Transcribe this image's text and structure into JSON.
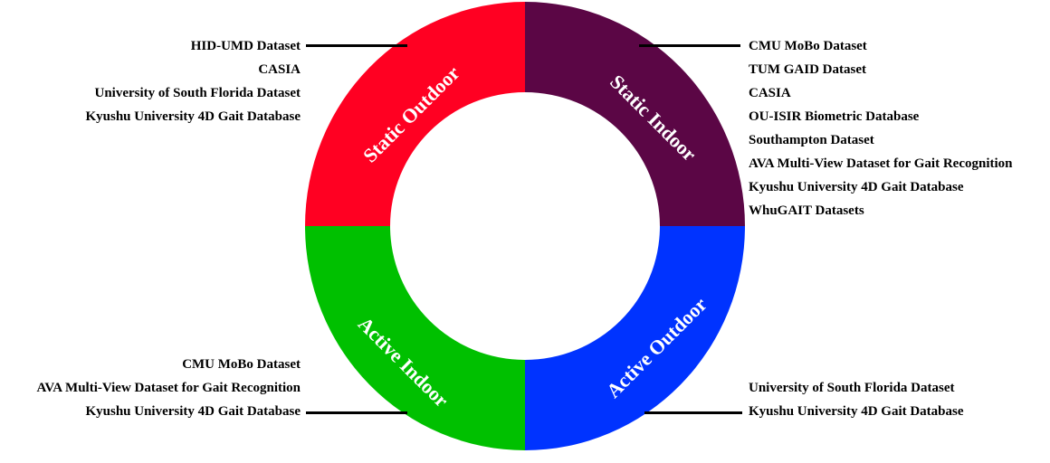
{
  "segments": {
    "static_outdoor": {
      "label": "Static Outdoor",
      "color": "#FF0022"
    },
    "static_indoor": {
      "label": "Static Indoor",
      "color": "#5B0645"
    },
    "active_indoor": {
      "label": "Active Indoor",
      "color": "#00C000"
    },
    "active_outdoor": {
      "label": "Active Outdoor",
      "color": "#0033FF"
    }
  },
  "lists": {
    "static_outdoor": [
      "HID-UMD Dataset",
      "CASIA",
      "University of South Florida Dataset",
      "Kyushu University 4D Gait Database"
    ],
    "static_indoor": [
      "CMU MoBo Dataset",
      "TUM GAID Dataset",
      "CASIA",
      "OU-ISIR Biometric Database",
      "Southampton Dataset",
      "AVA Multi-View Dataset for Gait Recognition",
      "Kyushu University 4D Gait Database",
      "WhuGAIT Datasets"
    ],
    "active_indoor": [
      "CMU MoBo Dataset",
      "AVA Multi-View Dataset for Gait Recognition",
      "Kyushu University 4D Gait Database"
    ],
    "active_outdoor": [
      "University of South Florida Dataset",
      "Kyushu University 4D Gait Database"
    ]
  }
}
